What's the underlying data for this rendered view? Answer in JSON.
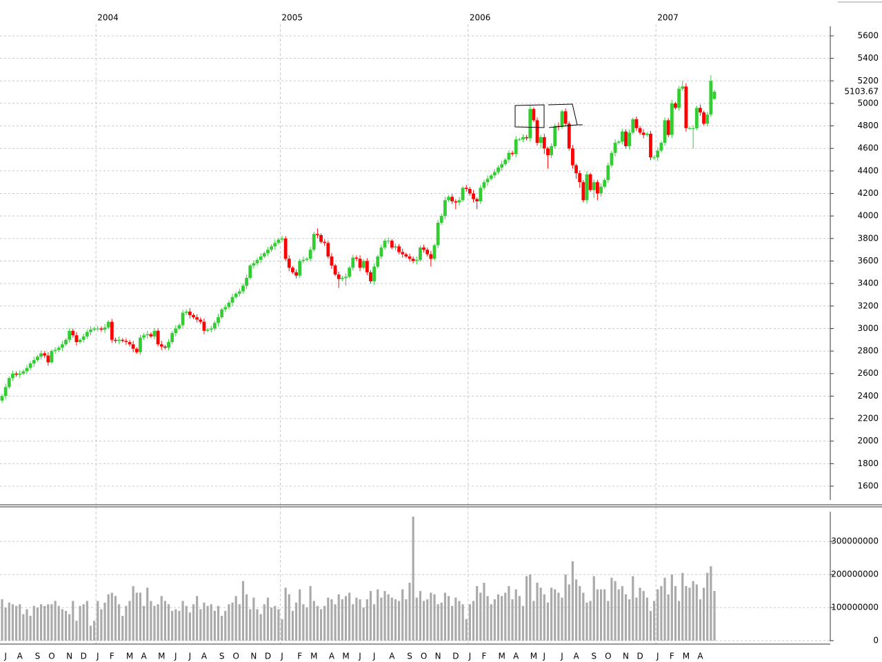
{
  "chart_data": [
    {
      "type": "candlestick",
      "categories": [
        null,
        "J",
        null,
        null,
        null,
        "A",
        null,
        null,
        null,
        null,
        "S",
        null,
        null,
        null,
        "O",
        null,
        null,
        null,
        null,
        "N",
        null,
        null,
        null,
        "D",
        null,
        null,
        null,
        "J",
        null,
        null,
        null,
        "F",
        null,
        null,
        null,
        null,
        "M",
        null,
        null,
        null,
        "A",
        null,
        null,
        null,
        null,
        "M",
        null,
        null,
        null,
        "J",
        null,
        null,
        null,
        "J",
        null,
        null,
        null,
        "A",
        null,
        null,
        null,
        null,
        "S",
        null,
        null,
        null,
        "O",
        null,
        null,
        null,
        null,
        "N",
        null,
        null,
        null,
        "D",
        null,
        null,
        null,
        "J",
        null,
        null,
        null,
        null,
        "F",
        null,
        null,
        null,
        "M",
        null,
        null,
        null,
        null,
        "A",
        null,
        null,
        null,
        "M",
        null,
        null,
        null,
        "J",
        null,
        null,
        null,
        "J",
        null,
        null,
        null,
        null,
        "A",
        null,
        null,
        null,
        null,
        "S",
        null,
        null,
        null,
        "O",
        null,
        null,
        null,
        "N",
        null,
        null,
        null,
        null,
        "D",
        null,
        null,
        null,
        "J",
        null,
        null,
        null,
        "F",
        null,
        null,
        null,
        null,
        "M",
        null,
        null,
        null,
        "A",
        null,
        null,
        null,
        null,
        "M",
        null,
        null,
        "J",
        null,
        null,
        null,
        null,
        "J",
        null,
        null,
        null,
        "A",
        null,
        null,
        null,
        null,
        "S",
        null,
        null,
        null,
        "O",
        null,
        null,
        null,
        null,
        "N",
        null,
        null,
        null,
        "D",
        null,
        null,
        null,
        null,
        "J",
        null,
        null,
        null,
        "F",
        null,
        null,
        null,
        "M",
        null,
        null,
        null,
        "A",
        null,
        null,
        null,
        null
      ],
      "year_labels": [
        "2004",
        "2005",
        "2006",
        "2007"
      ],
      "open": [
        2360,
        2400,
        2480,
        2560,
        2600,
        2590,
        2600,
        2620,
        2650,
        2690,
        2720,
        2750,
        2780,
        2760,
        2700,
        2800,
        2810,
        2830,
        2860,
        2900,
        2980,
        2940,
        2880,
        2900,
        2930,
        2970,
        2990,
        3000,
        3000,
        2990,
        3010,
        3060,
        2900,
        2890,
        2900,
        2890,
        2880,
        2860,
        2820,
        2790,
        2920,
        2940,
        2950,
        2930,
        2980,
        2860,
        2840,
        2830,
        2880,
        2960,
        3000,
        3030,
        3140,
        3150,
        3120,
        3100,
        3080,
        3060,
        2980,
        2990,
        3000,
        3050,
        3100,
        3170,
        3190,
        3230,
        3280,
        3310,
        3330,
        3380,
        3450,
        3560,
        3580,
        3610,
        3640,
        3670,
        3700,
        3730,
        3760,
        3790,
        3800,
        3620,
        3540,
        3500,
        3470,
        3600,
        3610,
        3620,
        3700,
        3840,
        3830,
        3770,
        3760,
        3640,
        3560,
        3480,
        3440,
        3450,
        3460,
        3540,
        3630,
        3620,
        3540,
        3600,
        3500,
        3420,
        3550,
        3640,
        3720,
        3780,
        3780,
        3720,
        3730,
        3680,
        3660,
        3640,
        3620,
        3600,
        3610,
        3720,
        3700,
        3660,
        3620,
        3740,
        3940,
        4000,
        4140,
        4170,
        4130,
        4120,
        4140,
        4250,
        4240,
        4200,
        4150,
        4130,
        4250,
        4300,
        4330,
        4360,
        4390,
        4430,
        4460,
        4500,
        4560,
        4550,
        4680,
        4680,
        4700,
        4690,
        4950,
        4850,
        4650,
        4700,
        4600,
        4540,
        4620,
        4800,
        4790,
        4930,
        4820,
        4600,
        4450,
        4380,
        4300,
        4140,
        4370,
        4230,
        4300,
        4200,
        4260,
        4320,
        4450,
        4560,
        4650,
        4660,
        4750,
        4620,
        4740,
        4860,
        4780,
        4740,
        4720,
        4730,
        4520,
        4520,
        4580,
        4650,
        4850,
        4720,
        5000,
        4960,
        5130,
        5150,
        4780,
        4780,
        4780,
        4960,
        4920,
        4820,
        4900,
        5040
      ],
      "high": [
        2420,
        2510,
        2575,
        2625,
        2620,
        2630,
        2635,
        2675,
        2710,
        2750,
        2765,
        2805,
        2800,
        2790,
        2815,
        2835,
        2850,
        2890,
        2915,
        3005,
        3000,
        2970,
        2915,
        2955,
        2990,
        3020,
        3015,
        3025,
        3020,
        3040,
        3075,
        3085,
        2920,
        2930,
        2915,
        2915,
        2900,
        2890,
        2835,
        2945,
        2960,
        2980,
        2965,
        3005,
        3000,
        2890,
        2855,
        2905,
        2980,
        3030,
        3045,
        3165,
        3170,
        3180,
        3135,
        3125,
        3100,
        3090,
        3005,
        3025,
        3070,
        3130,
        3185,
        3215,
        3250,
        3310,
        3325,
        3355,
        3400,
        3480,
        3575,
        3605,
        3630,
        3670,
        3685,
        3725,
        3750,
        3790,
        3805,
        3825,
        3820,
        3650,
        3555,
        3525,
        3620,
        3640,
        3635,
        3725,
        3860,
        3890,
        3845,
        3795,
        3780,
        3670,
        3575,
        3505,
        3470,
        3490,
        3555,
        3655,
        3650,
        3650,
        3615,
        3625,
        3520,
        3580,
        3655,
        3745,
        3800,
        3810,
        3795,
        3755,
        3750,
        3710,
        3675,
        3665,
        3640,
        3640,
        3735,
        3745,
        3720,
        3690,
        3755,
        3965,
        4020,
        4170,
        4185,
        4195,
        4150,
        4170,
        4265,
        4275,
        4260,
        4230,
        4165,
        4275,
        4320,
        4360,
        4375,
        4415,
        4450,
        4490,
        4515,
        4585,
        4580,
        4710,
        4695,
        4725,
        4720,
        4980,
        4965,
        4875,
        4720,
        4730,
        4615,
        4645,
        4820,
        4830,
        4945,
        4955,
        4840,
        4630,
        4465,
        4405,
        4320,
        4400,
        4385,
        4325,
        4320,
        4290,
        4335,
        4475,
        4580,
        4680,
        4675,
        4775,
        4770,
        4770,
        4875,
        4885,
        4800,
        4770,
        4745,
        4755,
        4540,
        4610,
        4665,
        4875,
        4870,
        5030,
        5015,
        5155,
        5200,
        5180,
        4795,
        4805,
        4980,
        4990,
        4935,
        4925,
        5250,
        5120
      ],
      "low": [
        2340,
        2370,
        2465,
        2535,
        2570,
        2560,
        2585,
        2595,
        2630,
        2660,
        2705,
        2725,
        2740,
        2670,
        2685,
        2775,
        2790,
        2800,
        2845,
        2875,
        2920,
        2850,
        2865,
        2875,
        2910,
        2940,
        2975,
        2975,
        2970,
        2960,
        2995,
        2875,
        2870,
        2860,
        2875,
        2855,
        2840,
        2790,
        2775,
        2765,
        2900,
        2910,
        2915,
        2905,
        2840,
        2810,
        2815,
        2805,
        2860,
        2930,
        2985,
        3005,
        3120,
        3090,
        3085,
        3055,
        3040,
        2950,
        2965,
        2965,
        2980,
        3020,
        3085,
        3145,
        3170,
        3200,
        3265,
        3285,
        3310,
        3350,
        3435,
        3535,
        3560,
        3580,
        3625,
        3645,
        3680,
        3700,
        3745,
        3765,
        3600,
        3510,
        3485,
        3445,
        3450,
        3580,
        3595,
        3595,
        3680,
        3800,
        3755,
        3735,
        3620,
        3530,
        3465,
        3360,
        3420,
        3380,
        3445,
        3515,
        3600,
        3510,
        3525,
        3475,
        3400,
        3390,
        3535,
        3615,
        3700,
        3750,
        3705,
        3695,
        3660,
        3630,
        3625,
        3595,
        3580,
        3570,
        3595,
        3675,
        3640,
        3550,
        3605,
        3715,
        3920,
        3970,
        4125,
        4105,
        4060,
        4090,
        4125,
        4215,
        4180,
        4120,
        4060,
        4105,
        4230,
        4270,
        4315,
        4335,
        4370,
        4400,
        4445,
        4475,
        4530,
        4520,
        4665,
        4655,
        4670,
        4660,
        4835,
        4625,
        4600,
        4550,
        4420,
        4515,
        4600,
        4760,
        4775,
        4795,
        4580,
        4420,
        4330,
        4250,
        4120,
        4110,
        4215,
        4160,
        4140,
        4170,
        4245,
        4295,
        4430,
        4530,
        4635,
        4635,
        4600,
        4590,
        4725,
        4755,
        4720,
        4690,
        4705,
        4495,
        4500,
        4490,
        4565,
        4625,
        4700,
        4690,
        4945,
        4935,
        5110,
        4750,
        4765,
        4600,
        4760,
        4890,
        4805,
        4795,
        4880,
        5030
      ],
      "close": [
        2400,
        2480,
        2560,
        2600,
        2590,
        2600,
        2620,
        2650,
        2690,
        2720,
        2750,
        2780,
        2760,
        2700,
        2800,
        2810,
        2830,
        2860,
        2900,
        2980,
        2940,
        2880,
        2900,
        2930,
        2970,
        2990,
        3000,
        3000,
        2990,
        3010,
        3060,
        2900,
        2890,
        2900,
        2890,
        2880,
        2860,
        2820,
        2790,
        2920,
        2940,
        2950,
        2930,
        2980,
        2860,
        2840,
        2830,
        2880,
        2960,
        3000,
        3030,
        3140,
        3150,
        3120,
        3100,
        3080,
        3060,
        2980,
        2990,
        3000,
        3050,
        3100,
        3170,
        3190,
        3230,
        3280,
        3310,
        3330,
        3380,
        3450,
        3560,
        3580,
        3610,
        3640,
        3670,
        3700,
        3730,
        3760,
        3790,
        3800,
        3620,
        3540,
        3500,
        3470,
        3600,
        3610,
        3620,
        3700,
        3840,
        3830,
        3770,
        3760,
        3640,
        3560,
        3480,
        3440,
        3450,
        3460,
        3540,
        3630,
        3620,
        3540,
        3600,
        3500,
        3420,
        3550,
        3640,
        3720,
        3780,
        3780,
        3720,
        3730,
        3680,
        3660,
        3640,
        3620,
        3600,
        3610,
        3720,
        3700,
        3660,
        3620,
        3740,
        3940,
        4000,
        4140,
        4170,
        4130,
        4120,
        4140,
        4250,
        4240,
        4200,
        4150,
        4130,
        4250,
        4300,
        4330,
        4360,
        4390,
        4430,
        4460,
        4500,
        4560,
        4550,
        4680,
        4680,
        4700,
        4690,
        4950,
        4850,
        4650,
        4700,
        4600,
        4540,
        4620,
        4800,
        4790,
        4930,
        4820,
        4600,
        4450,
        4380,
        4300,
        4140,
        4370,
        4230,
        4300,
        4200,
        4260,
        4320,
        4450,
        4560,
        4650,
        4660,
        4750,
        4620,
        4740,
        4860,
        4780,
        4740,
        4720,
        4730,
        4520,
        4520,
        4580,
        4650,
        4850,
        4720,
        5000,
        4960,
        5130,
        5150,
        4780,
        4780,
        4780,
        4960,
        4920,
        4820,
        4900,
        5200,
        5103.67
      ],
      "up_color": "#33cc33",
      "down_color": "#ff0000",
      "last_color": "#ff0000",
      "ylim": [
        1480,
        5680
      ],
      "yticks": [
        1600,
        1800,
        2000,
        2200,
        2400,
        2600,
        2800,
        3000,
        3200,
        3400,
        3600,
        3800,
        4000,
        4200,
        4400,
        4600,
        4800,
        5000,
        5200,
        5400,
        5600
      ],
      "grid": true
    },
    {
      "type": "bar",
      "color": "#aaaaaa",
      "values": [
        125000000,
        100000000,
        115000000,
        110000000,
        105000000,
        110000000,
        80000000,
        95000000,
        75000000,
        105000000,
        100000000,
        110000000,
        105000000,
        110000000,
        110000000,
        120000000,
        105000000,
        95000000,
        90000000,
        80000000,
        120000000,
        60000000,
        105000000,
        110000000,
        120000000,
        45000000,
        60000000,
        120000000,
        95000000,
        115000000,
        140000000,
        145000000,
        135000000,
        110000000,
        75000000,
        105000000,
        120000000,
        165000000,
        145000000,
        145000000,
        105000000,
        160000000,
        120000000,
        105000000,
        110000000,
        135000000,
        120000000,
        110000000,
        90000000,
        95000000,
        90000000,
        120000000,
        105000000,
        85000000,
        110000000,
        135000000,
        95000000,
        115000000,
        105000000,
        110000000,
        90000000,
        105000000,
        75000000,
        90000000,
        110000000,
        115000000,
        135000000,
        110000000,
        180000000,
        140000000,
        95000000,
        130000000,
        95000000,
        80000000,
        110000000,
        130000000,
        100000000,
        105000000,
        95000000,
        65000000,
        160000000,
        140000000,
        90000000,
        115000000,
        155000000,
        110000000,
        100000000,
        165000000,
        120000000,
        105000000,
        95000000,
        105000000,
        130000000,
        125000000,
        110000000,
        140000000,
        125000000,
        135000000,
        145000000,
        110000000,
        130000000,
        125000000,
        100000000,
        125000000,
        150000000,
        110000000,
        155000000,
        130000000,
        150000000,
        140000000,
        130000000,
        125000000,
        120000000,
        155000000,
        125000000,
        175000000,
        375000000,
        130000000,
        150000000,
        120000000,
        125000000,
        145000000,
        140000000,
        110000000,
        115000000,
        145000000,
        135000000,
        105000000,
        130000000,
        120000000,
        110000000,
        65000000,
        110000000,
        120000000,
        165000000,
        145000000,
        175000000,
        135000000,
        110000000,
        125000000,
        140000000,
        135000000,
        145000000,
        165000000,
        125000000,
        155000000,
        135000000,
        105000000,
        195000000,
        200000000,
        120000000,
        175000000,
        160000000,
        140000000,
        115000000,
        160000000,
        155000000,
        145000000,
        130000000,
        200000000,
        170000000,
        240000000,
        185000000,
        165000000,
        145000000,
        115000000,
        120000000,
        195000000,
        155000000,
        155000000,
        155000000,
        120000000,
        190000000,
        180000000,
        155000000,
        165000000,
        140000000,
        125000000,
        195000000,
        130000000,
        160000000,
        150000000,
        130000000,
        90000000,
        120000000,
        155000000,
        165000000,
        190000000,
        140000000,
        200000000,
        165000000,
        120000000,
        205000000,
        165000000,
        160000000,
        180000000,
        170000000,
        125000000,
        160000000,
        205000000,
        225000000,
        150000000
      ],
      "ylim": [
        0,
        390000000
      ],
      "yticks": [
        0,
        100000000,
        200000000,
        300000000
      ],
      "grid": true
    }
  ]
}
